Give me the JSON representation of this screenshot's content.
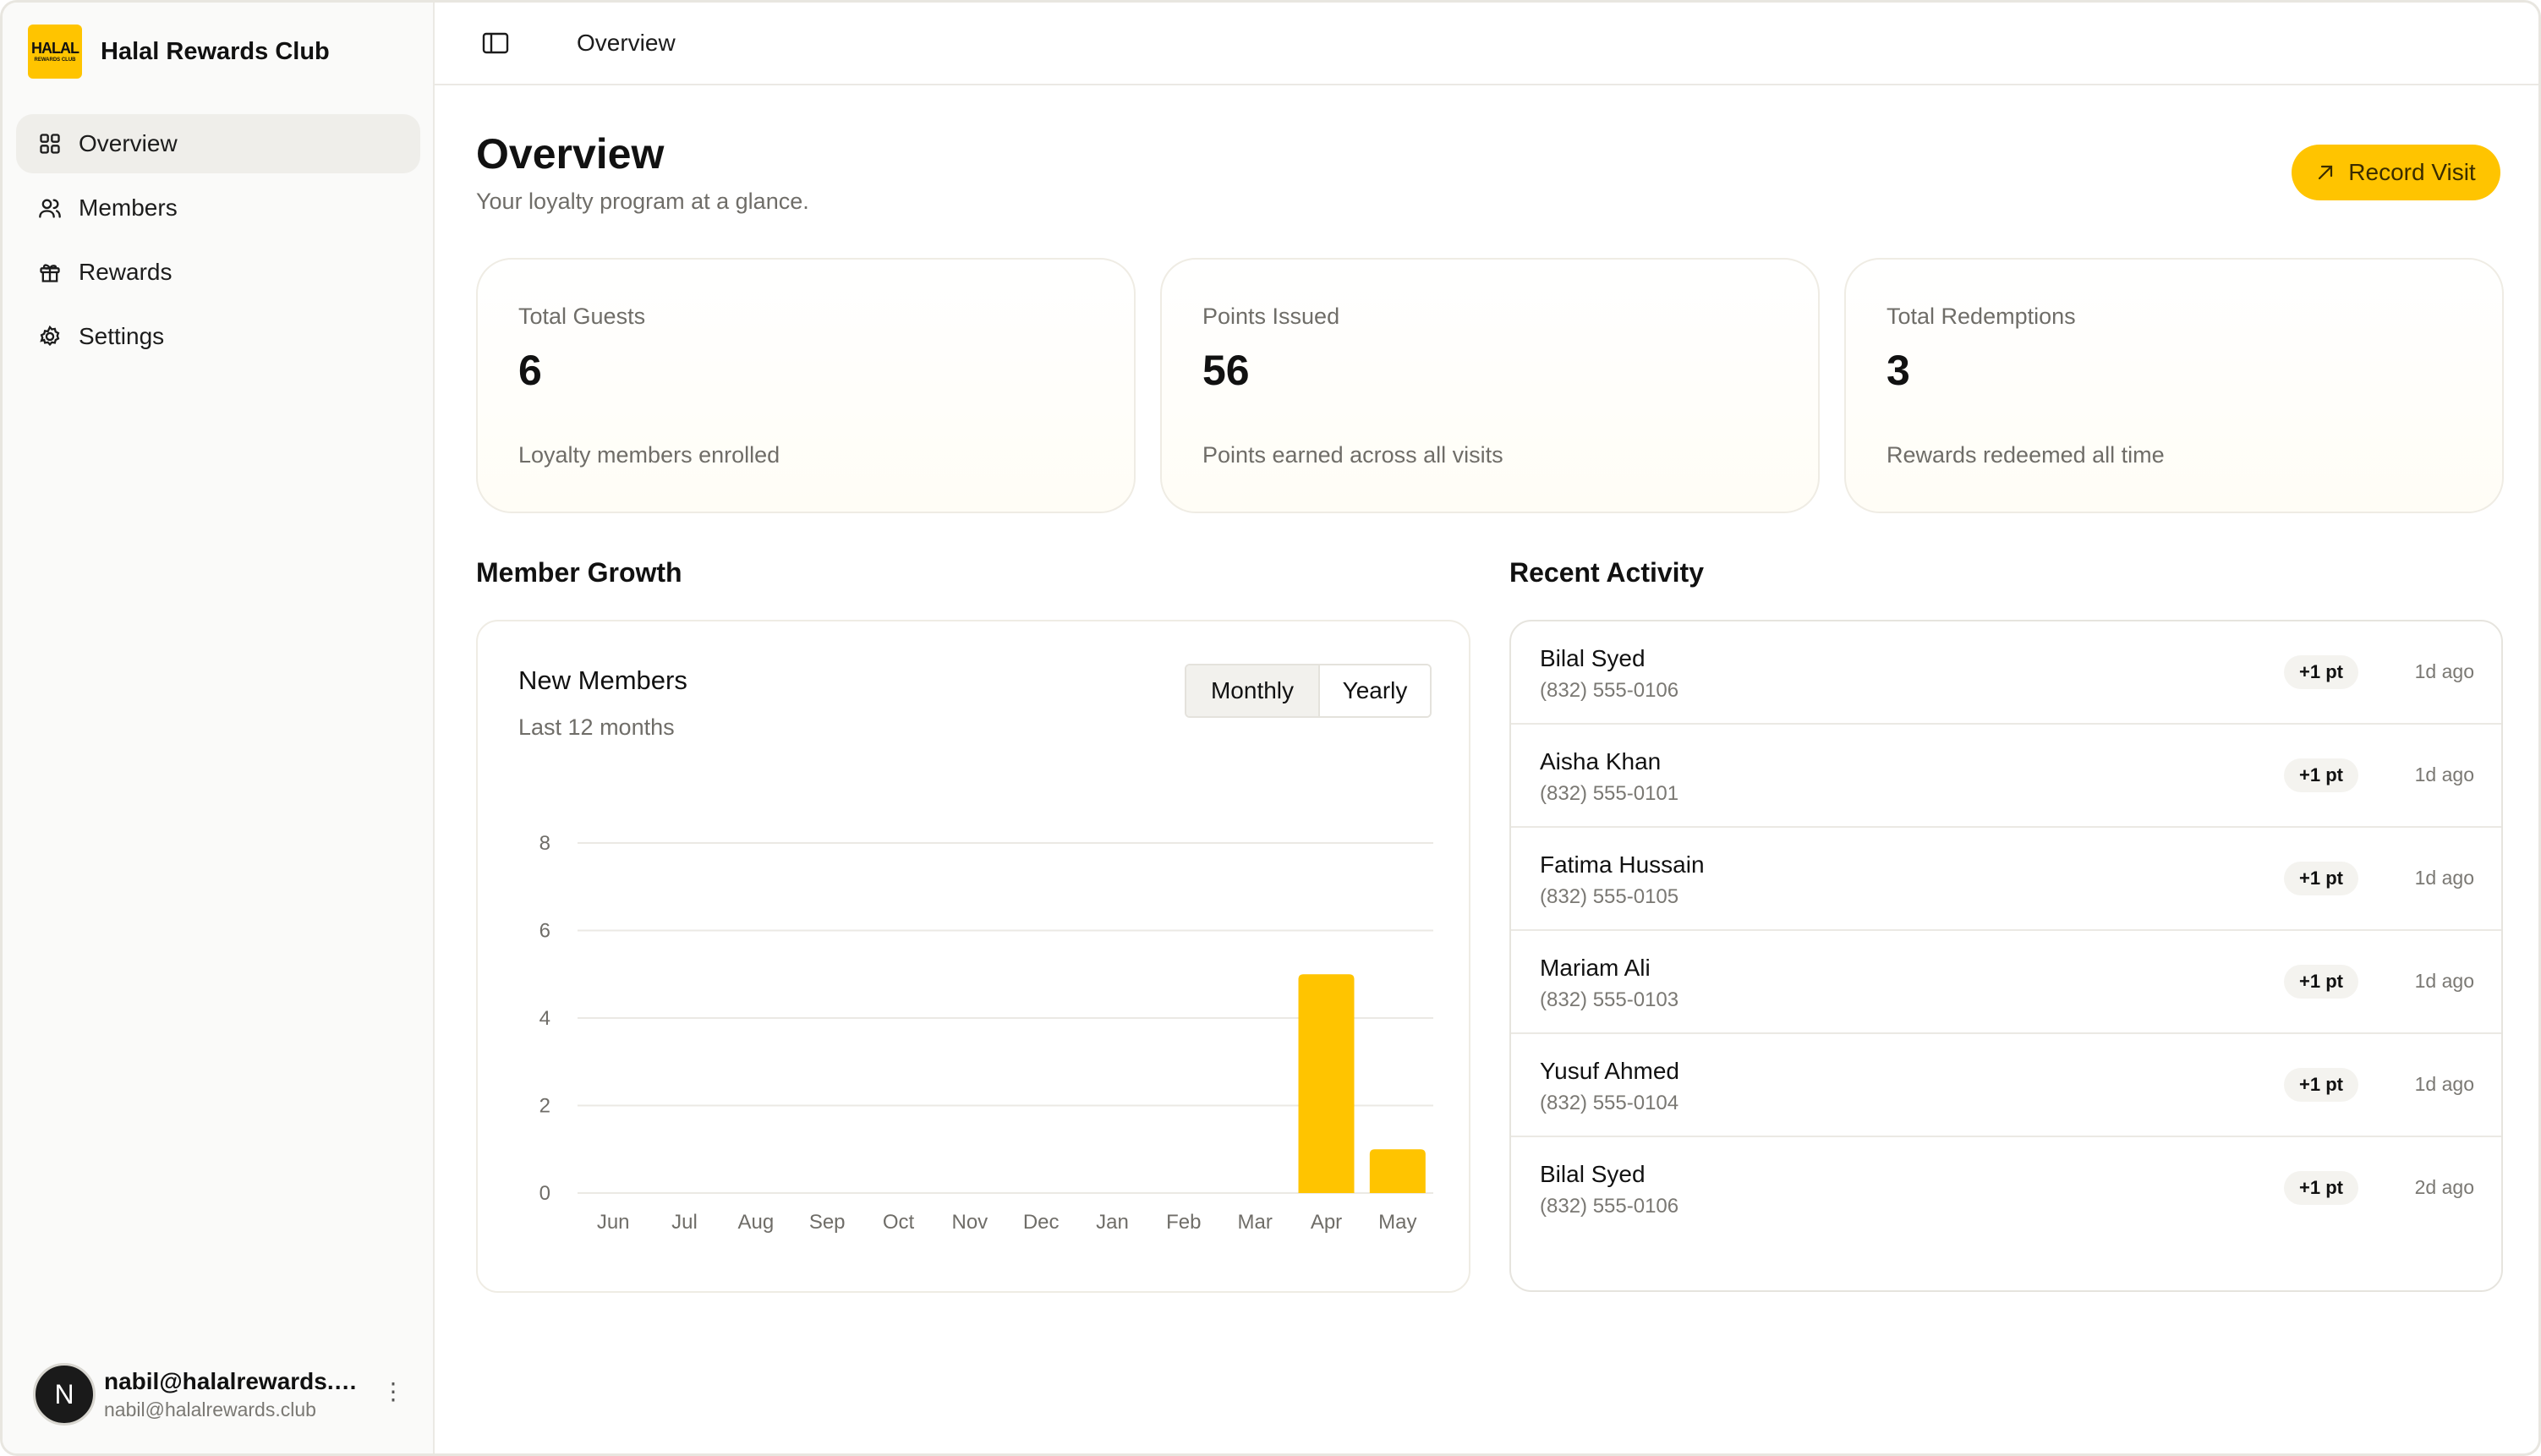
{
  "brand": {
    "name": "Halal Rewards Club",
    "logo_line1": "HALAL",
    "logo_line2": "REWARDS CLUB"
  },
  "nav": [
    {
      "label": "Overview",
      "icon": "grid-icon",
      "active": true
    },
    {
      "label": "Members",
      "icon": "users-icon",
      "active": false
    },
    {
      "label": "Rewards",
      "icon": "gift-icon",
      "active": false
    },
    {
      "label": "Settings",
      "icon": "gear-icon",
      "active": false
    }
  ],
  "user": {
    "initial": "N",
    "name": "nabil@halalrewards.club",
    "email": "nabil@halalrewards.club"
  },
  "topbar": {
    "breadcrumb": "Overview"
  },
  "page": {
    "title": "Overview",
    "subtitle": "Your loyalty program at a glance.",
    "record_label": "Record Visit"
  },
  "stats": [
    {
      "label": "Total Guests",
      "value": "6",
      "desc": "Loyalty members enrolled"
    },
    {
      "label": "Points Issued",
      "value": "56",
      "desc": "Points earned across all visits"
    },
    {
      "label": "Total Redemptions",
      "value": "3",
      "desc": "Rewards redeemed all time"
    }
  ],
  "sections": {
    "growth": "Member Growth",
    "activity": "Recent Activity"
  },
  "chart_card": {
    "title": "New Members",
    "subtitle": "Last 12 months",
    "monthly": "Monthly",
    "yearly": "Yearly"
  },
  "colors": {
    "accent": "#ffc400",
    "grid": "#ebe9e4"
  },
  "chart_data": {
    "type": "bar",
    "categories": [
      "Jun",
      "Jul",
      "Aug",
      "Sep",
      "Oct",
      "Nov",
      "Dec",
      "Jan",
      "Feb",
      "Mar",
      "Apr",
      "May"
    ],
    "values": [
      0,
      0,
      0,
      0,
      0,
      0,
      0,
      0,
      0,
      0,
      5,
      1
    ],
    "yticks": [
      0,
      2,
      4,
      6,
      8
    ],
    "ylim": [
      0,
      8
    ],
    "grid": true,
    "xlabel": "",
    "ylabel": ""
  },
  "activity": [
    {
      "name": "Bilal Syed",
      "phone": "(832) 555-0106",
      "points": "+1 pt",
      "time": "1d ago"
    },
    {
      "name": "Aisha Khan",
      "phone": "(832) 555-0101",
      "points": "+1 pt",
      "time": "1d ago"
    },
    {
      "name": "Fatima Hussain",
      "phone": "(832) 555-0105",
      "points": "+1 pt",
      "time": "1d ago"
    },
    {
      "name": "Mariam Ali",
      "phone": "(832) 555-0103",
      "points": "+1 pt",
      "time": "1d ago"
    },
    {
      "name": "Yusuf Ahmed",
      "phone": "(832) 555-0104",
      "points": "+1 pt",
      "time": "1d ago"
    },
    {
      "name": "Bilal Syed",
      "phone": "(832) 555-0106",
      "points": "+1 pt",
      "time": "2d ago"
    }
  ]
}
